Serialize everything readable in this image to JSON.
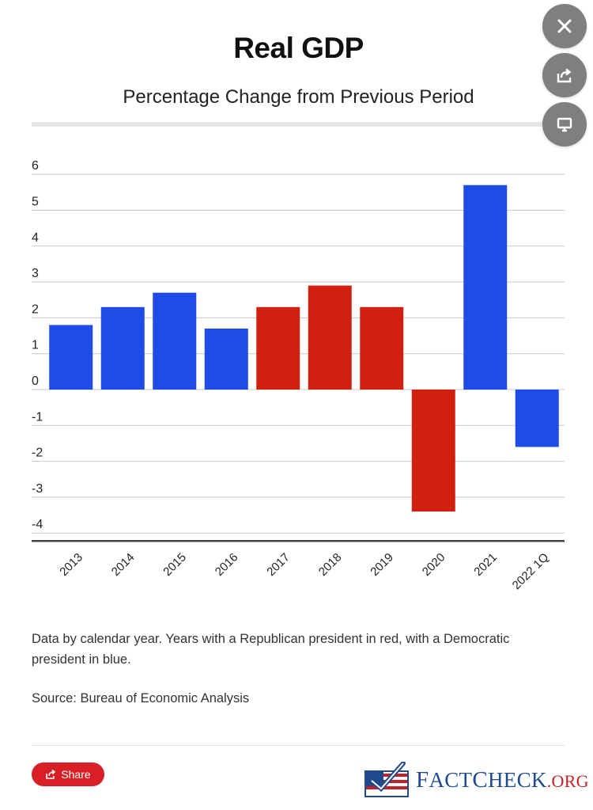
{
  "chart_data": {
    "type": "bar",
    "title": "Real GDP",
    "subtitle": "Percentage Change from Previous Period",
    "categories": [
      "2013",
      "2014",
      "2015",
      "2016",
      "2017",
      "2018",
      "2019",
      "2020",
      "2021",
      "2022 1Q"
    ],
    "values": [
      1.8,
      2.3,
      2.7,
      1.7,
      2.3,
      2.9,
      2.3,
      -3.4,
      5.7,
      -1.6
    ],
    "party": [
      "D",
      "D",
      "D",
      "D",
      "R",
      "R",
      "R",
      "R",
      "D",
      "D"
    ],
    "ylim": [
      -4.4,
      6.4
    ],
    "yticks": [
      6,
      5,
      4,
      3,
      2,
      1,
      0,
      -1,
      -2,
      -3,
      -4
    ],
    "xlabel": "",
    "ylabel": "",
    "grid": true,
    "legend": "none"
  },
  "colors": {
    "republican": "#d02010",
    "democratic": "#1f4ce6",
    "grid": "#c8c8c8",
    "axis": "#444444"
  },
  "note": "Data by calendar year. Years with a Republican president in red, with a Democratic president in blue.",
  "source": "Source: Bureau of Economic Analysis",
  "share": {
    "label": "Share",
    "icon": "share-icon"
  },
  "logo": {
    "icon": "flag-checkmark-icon",
    "fact_big": "F",
    "fact_rest": "ACT",
    "check_big": "C",
    "check_rest": "HECK",
    "org": ".ORG"
  },
  "controls": {
    "close_icon": "close-icon",
    "share_icon": "share-icon",
    "present_icon": "monitor-icon"
  }
}
